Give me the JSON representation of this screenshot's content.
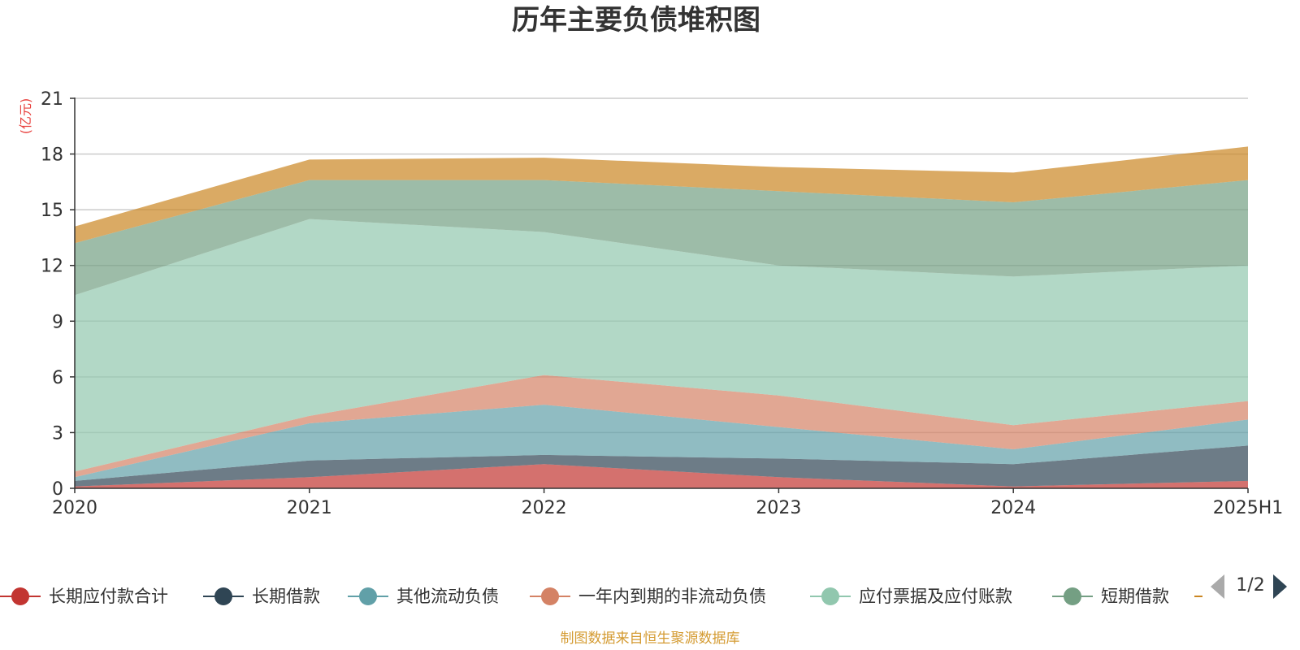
{
  "chart_data": {
    "type": "area",
    "stacked": true,
    "title": "历年主要负债堆积图",
    "unit_label": "(亿元)",
    "categories": [
      "2020",
      "2021",
      "2022",
      "2023",
      "2024",
      "2025H1"
    ],
    "ylim": [
      0,
      21
    ],
    "yticks": [
      "0",
      "3",
      "6",
      "9",
      "12",
      "15",
      "18",
      "21"
    ],
    "grid": true,
    "legend_position": "bottom",
    "series": [
      {
        "name": "长期应付款合计",
        "color": "#c23531",
        "values": [
          0.1,
          0.6,
          1.3,
          0.6,
          0.1,
          0.4
        ]
      },
      {
        "name": "长期借款",
        "color": "#2f4554",
        "values": [
          0.3,
          0.9,
          0.5,
          1.0,
          1.2,
          1.9
        ]
      },
      {
        "name": "其他流动负债",
        "color": "#61a0a8",
        "values": [
          0.2,
          2.0,
          2.7,
          1.7,
          0.8,
          1.4
        ]
      },
      {
        "name": "一年内到期的非流动负债",
        "color": "#d48265",
        "values": [
          0.3,
          0.4,
          1.6,
          1.7,
          1.3,
          1.0
        ]
      },
      {
        "name": "应付票据及应付账款",
        "color": "#91c7ae",
        "values": [
          9.5,
          10.6,
          7.7,
          7.0,
          8.0,
          7.3
        ]
      },
      {
        "name": "短期借款",
        "color": "#749f83",
        "values": [
          2.8,
          2.1,
          2.8,
          4.0,
          4.0,
          4.6
        ]
      },
      {
        "name": "",
        "color": "#ca8622",
        "values": [
          0.9,
          1.1,
          1.2,
          1.3,
          1.6,
          1.8
        ]
      }
    ]
  },
  "legend": {
    "items": [
      {
        "label": "长期应付款合计",
        "icon": "circle-line-icon"
      },
      {
        "label": "长期借款",
        "icon": "circle-line-icon"
      },
      {
        "label": "其他流动负债",
        "icon": "circle-line-icon"
      },
      {
        "label": "一年内到期的非流动负债",
        "icon": "circle-line-icon"
      },
      {
        "label": "应付票据及应付账款",
        "icon": "circle-line-icon"
      },
      {
        "label": "短期借款",
        "icon": "circle-line-icon"
      }
    ],
    "pager": {
      "text": "1/2",
      "prev_icon": "triangle-left-icon",
      "next_icon": "triangle-right-icon"
    }
  },
  "footer": {
    "source_text": "制图数据来自恒生聚源数据库"
  }
}
